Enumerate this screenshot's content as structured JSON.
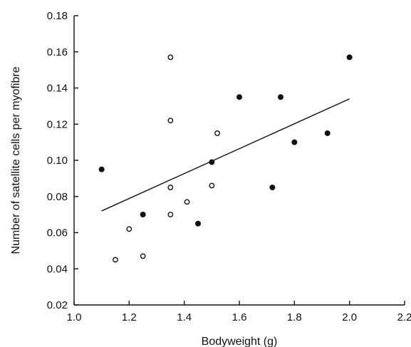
{
  "chart_data": {
    "type": "scatter",
    "title": "",
    "xlabel": "Bodyweight (g)",
    "ylabel": "Number of satellite cells per myofibre",
    "xlim": [
      1.0,
      2.2
    ],
    "ylim": [
      0.02,
      0.18
    ],
    "x_ticks": [
      "1.0",
      "1.2",
      "1.4",
      "1.6",
      "1.8",
      "2.0",
      "2.2"
    ],
    "y_ticks": [
      "0.02",
      "0.04",
      "0.06",
      "0.08",
      "0.10",
      "0.12",
      "0.14",
      "0.16",
      "0.18"
    ],
    "grid": false,
    "legend": "none",
    "series": [
      {
        "marker": "filled-circle",
        "color": "#111111",
        "points": [
          [
            1.1,
            0.095
          ],
          [
            1.25,
            0.07
          ],
          [
            1.45,
            0.065
          ],
          [
            1.5,
            0.099
          ],
          [
            1.6,
            0.135
          ],
          [
            1.72,
            0.085
          ],
          [
            1.75,
            0.135
          ],
          [
            1.8,
            0.11
          ],
          [
            1.92,
            0.115
          ],
          [
            2.0,
            0.157
          ]
        ]
      },
      {
        "marker": "open-circle",
        "color": "#111111",
        "points": [
          [
            1.15,
            0.045
          ],
          [
            1.2,
            0.062
          ],
          [
            1.25,
            0.047
          ],
          [
            1.35,
            0.157
          ],
          [
            1.35,
            0.122
          ],
          [
            1.35,
            0.085
          ],
          [
            1.35,
            0.07
          ],
          [
            1.41,
            0.077
          ],
          [
            1.5,
            0.086
          ],
          [
            1.52,
            0.115
          ]
        ]
      }
    ],
    "regression_line": {
      "x": [
        1.1,
        2.0
      ],
      "y": [
        0.072,
        0.134
      ]
    }
  }
}
